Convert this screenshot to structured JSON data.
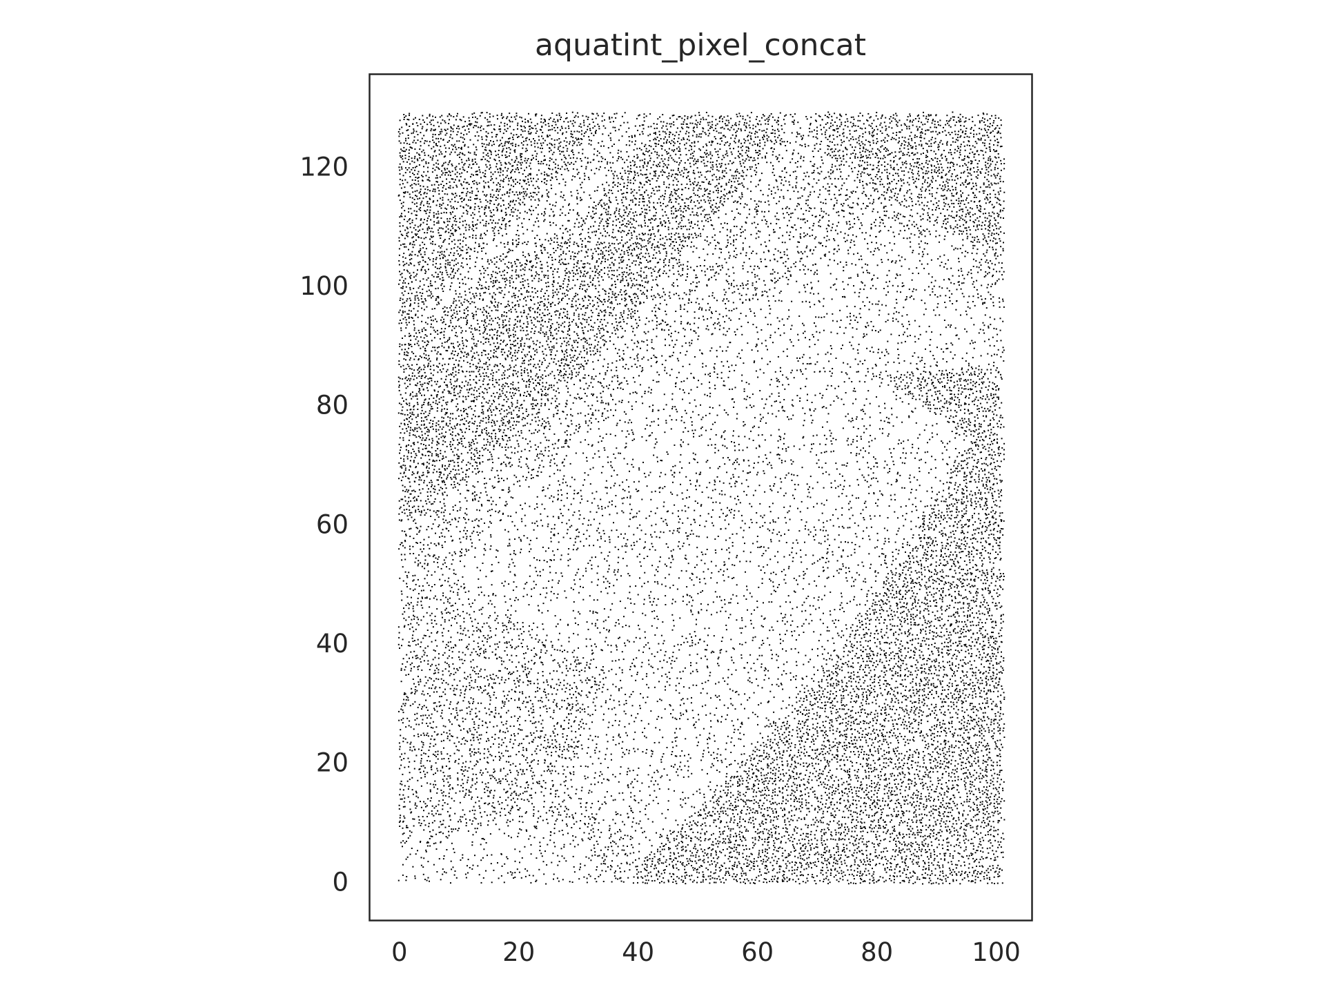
{
  "chart_data": {
    "type": "scatter",
    "title": "aquatint_pixel_concat",
    "xlabel": "",
    "ylabel": "",
    "xlim": [
      -5,
      106
    ],
    "ylim": [
      -6.5,
      135.5
    ],
    "xticks": [
      0,
      20,
      40,
      60,
      80,
      100
    ],
    "yticks": [
      0,
      20,
      40,
      60,
      80,
      100,
      120
    ],
    "x_tick_labels": [
      "0",
      "20",
      "40",
      "60",
      "80",
      "100"
    ],
    "y_tick_labels": [
      "0",
      "20",
      "40",
      "60",
      "80",
      "100",
      "120"
    ],
    "grid": false,
    "legend": "none",
    "marker_color": "#000000",
    "data_extent": {
      "x": [
        0,
        101
      ],
      "y": [
        0,
        129
      ]
    },
    "tone_regions": [
      {
        "label": "dark",
        "polygon": [
          [
            0,
            129
          ],
          [
            37,
            129
          ],
          [
            0,
            92
          ]
        ]
      },
      {
        "label": "dark",
        "polygon": [
          [
            29,
            110
          ],
          [
            45,
            129
          ],
          [
            67,
            129
          ],
          [
            50,
            108
          ],
          [
            30,
            85
          ],
          [
            15,
            70
          ],
          [
            0,
            60
          ],
          [
            0,
            90
          ],
          [
            12,
            100
          ]
        ]
      },
      {
        "label": "dark",
        "polygon": [
          [
            38,
            0
          ],
          [
            101,
            0
          ],
          [
            101,
            80
          ],
          [
            93,
            70
          ],
          [
            72,
            36
          ],
          [
            50,
            12
          ],
          [
            42,
            5
          ]
        ]
      },
      {
        "label": "dark",
        "polygon": [
          [
            67,
            129
          ],
          [
            101,
            129
          ],
          [
            101,
            105
          ],
          [
            90,
            110
          ],
          [
            78,
            117
          ],
          [
            70,
            124
          ]
        ]
      },
      {
        "label": "dark",
        "polygon": [
          [
            80,
            85
          ],
          [
            101,
            87
          ],
          [
            101,
            62
          ],
          [
            95,
            75
          ]
        ]
      },
      {
        "label": "medium",
        "polygon": [
          [
            0,
            50
          ],
          [
            18,
            45
          ],
          [
            35,
            35
          ],
          [
            28,
            15
          ],
          [
            0,
            5
          ]
        ]
      },
      {
        "label": "light",
        "polygon": [
          [
            10,
            55
          ],
          [
            40,
            85
          ],
          [
            80,
            110
          ],
          [
            100,
            95
          ],
          [
            95,
            60
          ],
          [
            72,
            38
          ],
          [
            50,
            12
          ],
          [
            40,
            5
          ],
          [
            25,
            20
          ],
          [
            10,
            40
          ]
        ]
      },
      {
        "label": "light",
        "polygon": [
          [
            0,
            0
          ],
          [
            35,
            0
          ],
          [
            30,
            10
          ],
          [
            15,
            10
          ],
          [
            0,
            12
          ]
        ]
      }
    ]
  }
}
